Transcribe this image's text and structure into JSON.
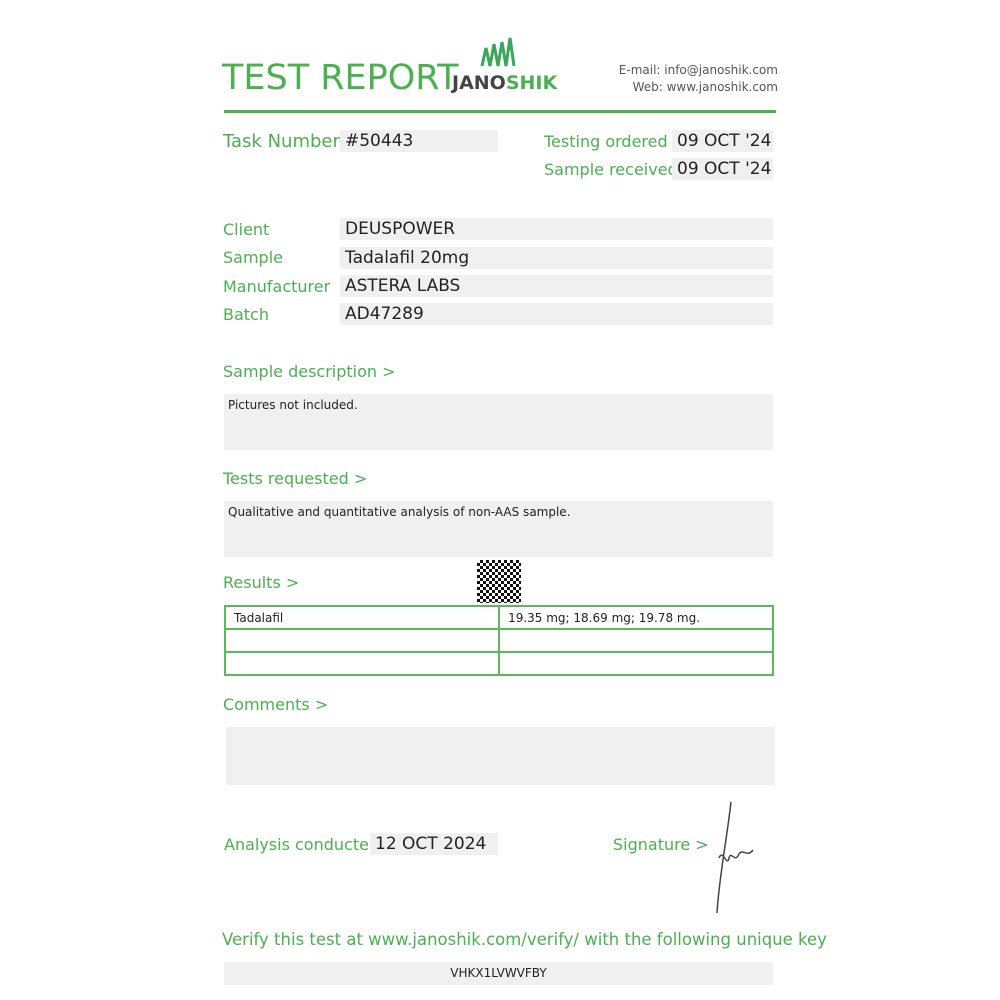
{
  "header": {
    "title": "TEST REPORT",
    "logo_text": "JANOSHIK",
    "logo_text_a": "JANO",
    "logo_text_b": "SHIK",
    "email": "E-mail: info@janoshik.com",
    "web": "Web: www.janoshik.com"
  },
  "task": {
    "label": "Task Number",
    "value": "#50443",
    "ordered_label": "Testing ordered  >",
    "ordered_value": "09 OCT '24",
    "received_label": "Sample received >",
    "received_value": "09 OCT '24"
  },
  "fields": [
    {
      "label": "Client",
      "value": "DEUSPOWER"
    },
    {
      "label": "Sample",
      "value": "Tadalafil 20mg"
    },
    {
      "label": "Manufacturer",
      "value": "ASTERA LABS"
    },
    {
      "label": "Batch",
      "value": "AD47289"
    }
  ],
  "sample_description": {
    "label": "Sample description >",
    "text": "Pictures not included."
  },
  "tests_requested": {
    "label": "Tests requested >",
    "text": "Qualitative and quantitative analysis of non-AAS sample."
  },
  "results": {
    "label": "Results >",
    "rows": [
      [
        "Tadalafil",
        "19.35 mg; 18.69 mg; 19.78 mg."
      ],
      [
        "",
        ""
      ],
      [
        "",
        ""
      ]
    ]
  },
  "comments": {
    "label": "Comments >",
    "text": ""
  },
  "analysis": {
    "label": "Analysis conducted >",
    "value": "12 OCT 2024"
  },
  "signature": {
    "label": "Signature >"
  },
  "verify": {
    "text": "Verify this test at www.janoshik.com/verify/ with the following unique key",
    "key": "VHKX1LVWVFBY"
  },
  "colors": {
    "accent": "#4caf50",
    "field_bg": "#f0f0f0"
  }
}
